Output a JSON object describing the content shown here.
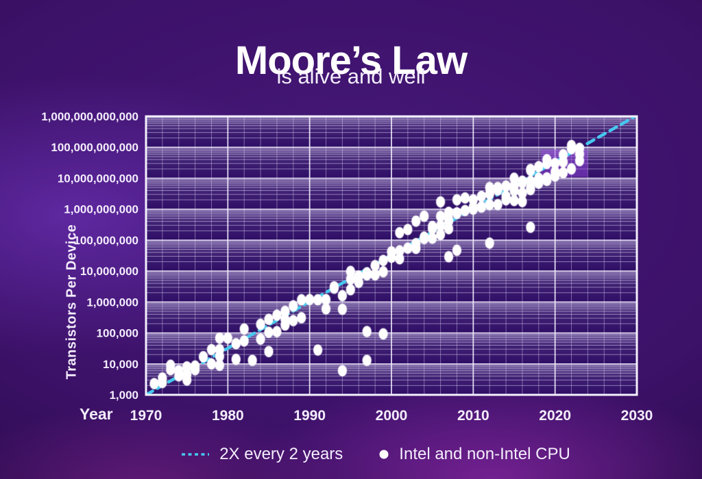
{
  "title": "Moore’s Law",
  "subtitle": "is alive and well",
  "axes": {
    "x_label": "Year",
    "y_label": "Transistors Per Device"
  },
  "legend": {
    "trend_label": "2X every 2 years",
    "points_label": "Intel and non-Intel CPU"
  },
  "colors": {
    "trend": "#46c8ef",
    "point": "#ffffff",
    "plot_bg": "#2f0e66",
    "grid_minor": "rgba(218,208,242,0.52)",
    "grid_major": "rgba(246,241,255,0.88)",
    "plot_border": "#f4f0fc",
    "band_light": "rgba(206,196,232,0.40)",
    "text": "#f3edfc",
    "highlight": "rgba(150,72,226,0.5)"
  },
  "chart_data": {
    "type": "scatter",
    "title": "Moore’s Law is alive and well",
    "xlabel": "Year",
    "ylabel": "Transistors Per Device",
    "x_range": [
      1970,
      2030
    ],
    "y_range": [
      1000,
      1000000000000
    ],
    "y_scale": "log10",
    "grid": "log minor gridlines on, striped purple background, vertical minor lines every 2 years",
    "legend_position": "bottom-center",
    "x_ticks": [
      1970,
      1980,
      1990,
      2000,
      2010,
      2020,
      2030
    ],
    "y_tick_labels": [
      "1,000",
      "10,000",
      "100,000",
      "1,000,000",
      "10,000,000",
      "100,000,000",
      "1,000,000,000",
      "10,000,000,000",
      "100,000,000,000",
      "1,000,000,000,000"
    ],
    "trend_line": {
      "label": "2X every 2 years",
      "style": "dashed",
      "start_year": 1970,
      "start_value": 1000,
      "doubling_every_years": 2,
      "end_year": 2030
    },
    "highlight_region": {
      "year_start": 2018.3,
      "year_end": 2024,
      "value_low": 11000000000,
      "value_high": 83000000000
    },
    "points_series": "Intel and non-Intel CPU",
    "points": [
      [
        1971,
        2300
      ],
      [
        1972,
        3500
      ],
      [
        1972,
        2500
      ],
      [
        1973,
        9000
      ],
      [
        1973,
        6500
      ],
      [
        1974,
        6000
      ],
      [
        1974,
        4100
      ],
      [
        1975,
        8000
      ],
      [
        1975,
        4500
      ],
      [
        1975,
        3000
      ],
      [
        1976,
        8500
      ],
      [
        1976,
        6500
      ],
      [
        1977,
        17000
      ],
      [
        1978,
        29000
      ],
      [
        1978,
        10000
      ],
      [
        1979,
        68000
      ],
      [
        1979,
        29000
      ],
      [
        1979,
        17500
      ],
      [
        1979,
        9000
      ],
      [
        1980,
        68000
      ],
      [
        1981,
        45000
      ],
      [
        1981,
        14000
      ],
      [
        1982,
        134000
      ],
      [
        1982,
        55000
      ],
      [
        1983,
        13000
      ],
      [
        1984,
        190000
      ],
      [
        1984,
        63000
      ],
      [
        1985,
        275000
      ],
      [
        1985,
        105000
      ],
      [
        1985,
        25000
      ],
      [
        1986,
        375000
      ],
      [
        1986,
        110000
      ],
      [
        1987,
        500000
      ],
      [
        1987,
        273000
      ],
      [
        1987,
        180000
      ],
      [
        1988,
        750000
      ],
      [
        1988,
        250000
      ],
      [
        1989,
        1180000
      ],
      [
        1989,
        310000
      ],
      [
        1990,
        1200000
      ],
      [
        1991,
        1185000
      ],
      [
        1991,
        28000
      ],
      [
        1992,
        1200000
      ],
      [
        1992,
        600000
      ],
      [
        1993,
        3100000
      ],
      [
        1993,
        2800000
      ],
      [
        1994,
        1600000
      ],
      [
        1994,
        580000
      ],
      [
        1994,
        6000
      ],
      [
        1995,
        5500000
      ],
      [
        1995,
        2500000
      ],
      [
        1995,
        9700000
      ],
      [
        1996,
        6800000
      ],
      [
        1996,
        4300000
      ],
      [
        1997,
        8800000
      ],
      [
        1997,
        7500000
      ],
      [
        1997,
        111000
      ],
      [
        1997,
        13000
      ],
      [
        1998,
        15000000
      ],
      [
        1998,
        7500000
      ],
      [
        1999,
        22000000
      ],
      [
        1999,
        9500000
      ],
      [
        1999,
        93000
      ],
      [
        2000,
        42000000
      ],
      [
        2000,
        28000000
      ],
      [
        2001,
        174000000
      ],
      [
        2001,
        45000000
      ],
      [
        2001,
        25000000
      ],
      [
        2002,
        220000000
      ],
      [
        2002,
        55000000
      ],
      [
        2003,
        410000000
      ],
      [
        2003,
        77000000
      ],
      [
        2003,
        54000000
      ],
      [
        2004,
        592000000
      ],
      [
        2004,
        125000000
      ],
      [
        2004,
        112000000
      ],
      [
        2005,
        276000000
      ],
      [
        2005,
        241000000
      ],
      [
        2005,
        233000000
      ],
      [
        2005,
        115000000
      ],
      [
        2006,
        1720000000
      ],
      [
        2006,
        582000000
      ],
      [
        2006,
        291000000
      ],
      [
        2006,
        151000000
      ],
      [
        2007,
        789000000
      ],
      [
        2007,
        463000000
      ],
      [
        2007,
        410000000
      ],
      [
        2007,
        234000000
      ],
      [
        2007,
        29000000
      ],
      [
        2008,
        2000000000
      ],
      [
        2008,
        758000000
      ],
      [
        2008,
        731000000
      ],
      [
        2008,
        47000000
      ],
      [
        2009,
        2300000000
      ],
      [
        2009,
        904000000
      ],
      [
        2010,
        2000000000
      ],
      [
        2010,
        1170000000
      ],
      [
        2010,
        1000000000
      ],
      [
        2011,
        2600000000
      ],
      [
        2011,
        1200000000
      ],
      [
        2011,
        1160000000
      ],
      [
        2012,
        5000000000
      ],
      [
        2012,
        3100000000
      ],
      [
        2012,
        1400000000
      ],
      [
        2012,
        80000000
      ],
      [
        2013,
        5000000000
      ],
      [
        2013,
        4200000000
      ],
      [
        2013,
        1400000000
      ],
      [
        2014,
        5560000000
      ],
      [
        2014,
        2600000000
      ],
      [
        2014,
        2000000000
      ],
      [
        2015,
        10000000000
      ],
      [
        2015,
        5690000000
      ],
      [
        2015,
        3990000000
      ],
      [
        2015,
        1900000000
      ],
      [
        2016,
        8000000000
      ],
      [
        2016,
        7200000000
      ],
      [
        2016,
        3300000000
      ],
      [
        2016,
        1750000000
      ],
      [
        2017,
        19200000000
      ],
      [
        2017,
        18000000000
      ],
      [
        2017,
        8000000000
      ],
      [
        2017,
        4800000000
      ],
      [
        2017,
        4300000000
      ],
      [
        2017,
        260000000
      ],
      [
        2018,
        23600000000
      ],
      [
        2018,
        10000000000
      ],
      [
        2018,
        8800000000
      ],
      [
        2018,
        6900000000
      ],
      [
        2019,
        39500000000
      ],
      [
        2019,
        30000000000
      ],
      [
        2019,
        10300000000
      ],
      [
        2019,
        8500000000
      ],
      [
        2020,
        30000000000
      ],
      [
        2020,
        16000000000
      ],
      [
        2020,
        11800000000
      ],
      [
        2021,
        57000000000
      ],
      [
        2021,
        33700000000
      ],
      [
        2021,
        15000000000
      ],
      [
        2022,
        114000000000
      ],
      [
        2022,
        90000000000
      ],
      [
        2022,
        20000000000
      ],
      [
        2023,
        92000000000
      ],
      [
        2023,
        60000000000
      ],
      [
        2023,
        37000000000
      ]
    ]
  }
}
